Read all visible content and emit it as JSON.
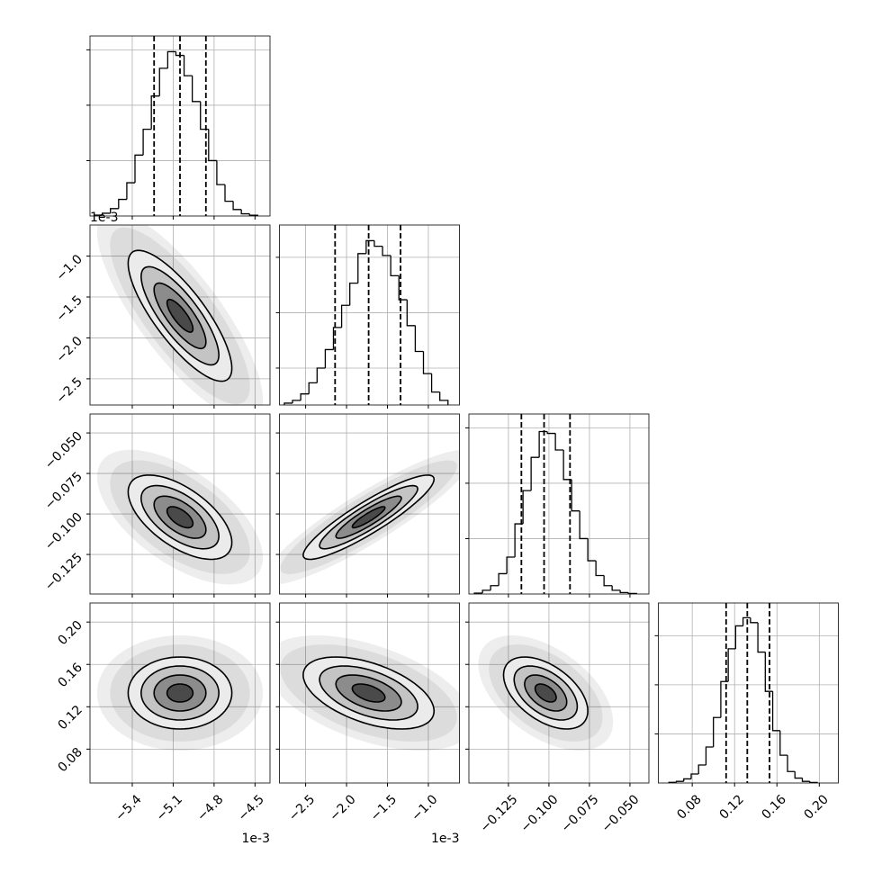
{
  "chart_data": {
    "type": "corner",
    "grid": true,
    "contour_sigmas": [
      0.5,
      1,
      1.5,
      2
    ],
    "parameters": [
      {
        "xlim": [
          -5.71,
          -4.39
        ],
        "ticks": [
          {
            "value": -5.4,
            "label": "−5.4"
          },
          {
            "value": -5.1,
            "label": "−5.1"
          },
          {
            "value": -4.8,
            "label": "−4.8"
          },
          {
            "value": -4.5,
            "label": "−4.5"
          }
        ],
        "offset_label": "1e-3",
        "mean": -5.05,
        "std": 0.19,
        "hist": {
          "bins": [
            -5.68,
            -5.62,
            -5.56,
            -5.5,
            -5.44,
            -5.38,
            -5.32,
            -5.26,
            -5.2,
            -5.14,
            -5.08,
            -5.02,
            -4.96,
            -4.9,
            -4.84,
            -4.78,
            -4.72,
            -4.66,
            -4.6,
            -4.54,
            -4.48
          ],
          "counts": [
            5,
            15,
            40,
            90,
            180,
            330,
            470,
            650,
            800,
            890,
            870,
            760,
            620,
            470,
            300,
            170,
            80,
            35,
            12,
            4
          ],
          "ylim": [
            0,
            975
          ],
          "yticks": [
            300,
            600,
            900
          ]
        },
        "quantiles": [
          -5.24,
          -5.05,
          -4.86
        ]
      },
      {
        "xlim": [
          -2.82,
          -0.62
        ],
        "ticks": [
          {
            "value": -2.5,
            "label": "−2.5"
          },
          {
            "value": -2.0,
            "label": "−2.0"
          },
          {
            "value": -1.5,
            "label": "−1.5"
          },
          {
            "value": -1.0,
            "label": "−1.0"
          }
        ],
        "offset_label": "1e-3",
        "mean": -1.73,
        "std": 0.4,
        "hist": {
          "bins": [
            -2.76,
            -2.66,
            -2.56,
            -2.46,
            -2.36,
            -2.26,
            -2.16,
            -2.06,
            -1.96,
            -1.86,
            -1.76,
            -1.66,
            -1.56,
            -1.46,
            -1.36,
            -1.26,
            -1.16,
            -1.06,
            -0.96,
            -0.86,
            -0.76
          ],
          "counts": [
            10,
            25,
            60,
            120,
            200,
            300,
            420,
            540,
            660,
            820,
            890,
            860,
            810,
            700,
            570,
            430,
            290,
            170,
            70,
            25
          ],
          "ylim": [
            0,
            975
          ],
          "yticks": [
            200,
            500,
            800
          ]
        },
        "quantiles": [
          -2.14,
          -1.73,
          -1.34
        ]
      },
      {
        "xlim": [
          -0.1494,
          -0.0383
        ],
        "ticks": [
          {
            "value": -0.125,
            "label": "−0.125"
          },
          {
            "value": -0.1,
            "label": "−0.100"
          },
          {
            "value": -0.075,
            "label": "−0.075"
          },
          {
            "value": -0.05,
            "label": "−0.050"
          }
        ],
        "mean": -0.102,
        "std": 0.013,
        "hist": {
          "bins": [
            -0.146,
            -0.141,
            -0.136,
            -0.131,
            -0.126,
            -0.121,
            -0.116,
            -0.111,
            -0.106,
            -0.101,
            -0.096,
            -0.091,
            -0.086,
            -0.081,
            -0.076,
            -0.071,
            -0.066,
            -0.061,
            -0.056,
            -0.051,
            -0.046
          ],
          "counts": [
            5,
            20,
            45,
            110,
            200,
            380,
            560,
            740,
            880,
            870,
            780,
            620,
            450,
            300,
            180,
            100,
            45,
            20,
            8,
            3
          ],
          "ylim": [
            0,
            975
          ],
          "yticks": [
            300,
            600,
            900
          ]
        },
        "quantiles": [
          -0.117,
          -0.103,
          -0.087
        ]
      },
      {
        "xlim": [
          0.048,
          0.218
        ],
        "ticks": [
          0.08,
          0.12,
          0.16,
          {
            "value": 0.2,
            "label": "0.20"
          }
        ],
        "mean": 0.133,
        "std": 0.017,
        "hist": {
          "bins": [
            0.058,
            0.065,
            0.072,
            0.079,
            0.086,
            0.093,
            0.1,
            0.107,
            0.114,
            0.121,
            0.128,
            0.135,
            0.142,
            0.149,
            0.156,
            0.163,
            0.17,
            0.177,
            0.184,
            0.191,
            0.198
          ],
          "counts": [
            4,
            10,
            25,
            55,
            110,
            220,
            400,
            620,
            820,
            960,
            1010,
            980,
            800,
            560,
            320,
            170,
            70,
            30,
            10,
            3
          ],
          "ylim": [
            0,
            1100
          ],
          "yticks": [
            300,
            600,
            900
          ]
        },
        "quantiles": [
          0.112,
          0.132,
          0.153
        ]
      }
    ],
    "correlation": [
      [
        1,
        -0.8,
        -0.6,
        0
      ],
      [
        -0.8,
        1,
        0.9,
        -0.5
      ],
      [
        -0.6,
        0.9,
        1,
        -0.5
      ],
      [
        0,
        -0.5,
        -0.5,
        1
      ]
    ]
  }
}
